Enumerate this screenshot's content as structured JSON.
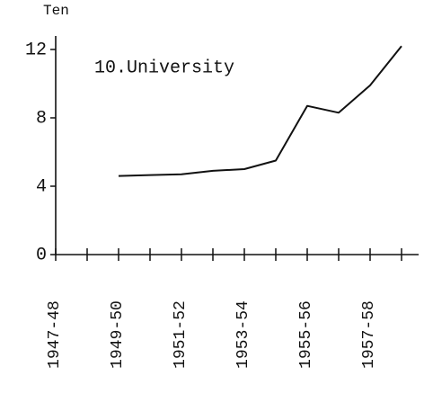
{
  "chart_data": {
    "type": "line",
    "title": "10.University",
    "y_label": "Ten",
    "categories": [
      "1947-48",
      null,
      "1949-50",
      null,
      "1951-52",
      null,
      "1953-54",
      null,
      "1955-56",
      null,
      "1957-58",
      null
    ],
    "values": [
      null,
      null,
      4.6,
      4.65,
      4.7,
      4.9,
      5.0,
      5.5,
      8.7,
      8.3,
      9.9,
      12.2
    ],
    "color": "#111111",
    "ylim": [
      0,
      12
    ],
    "yticks": [
      0,
      4,
      8,
      12
    ],
    "grid": false
  }
}
